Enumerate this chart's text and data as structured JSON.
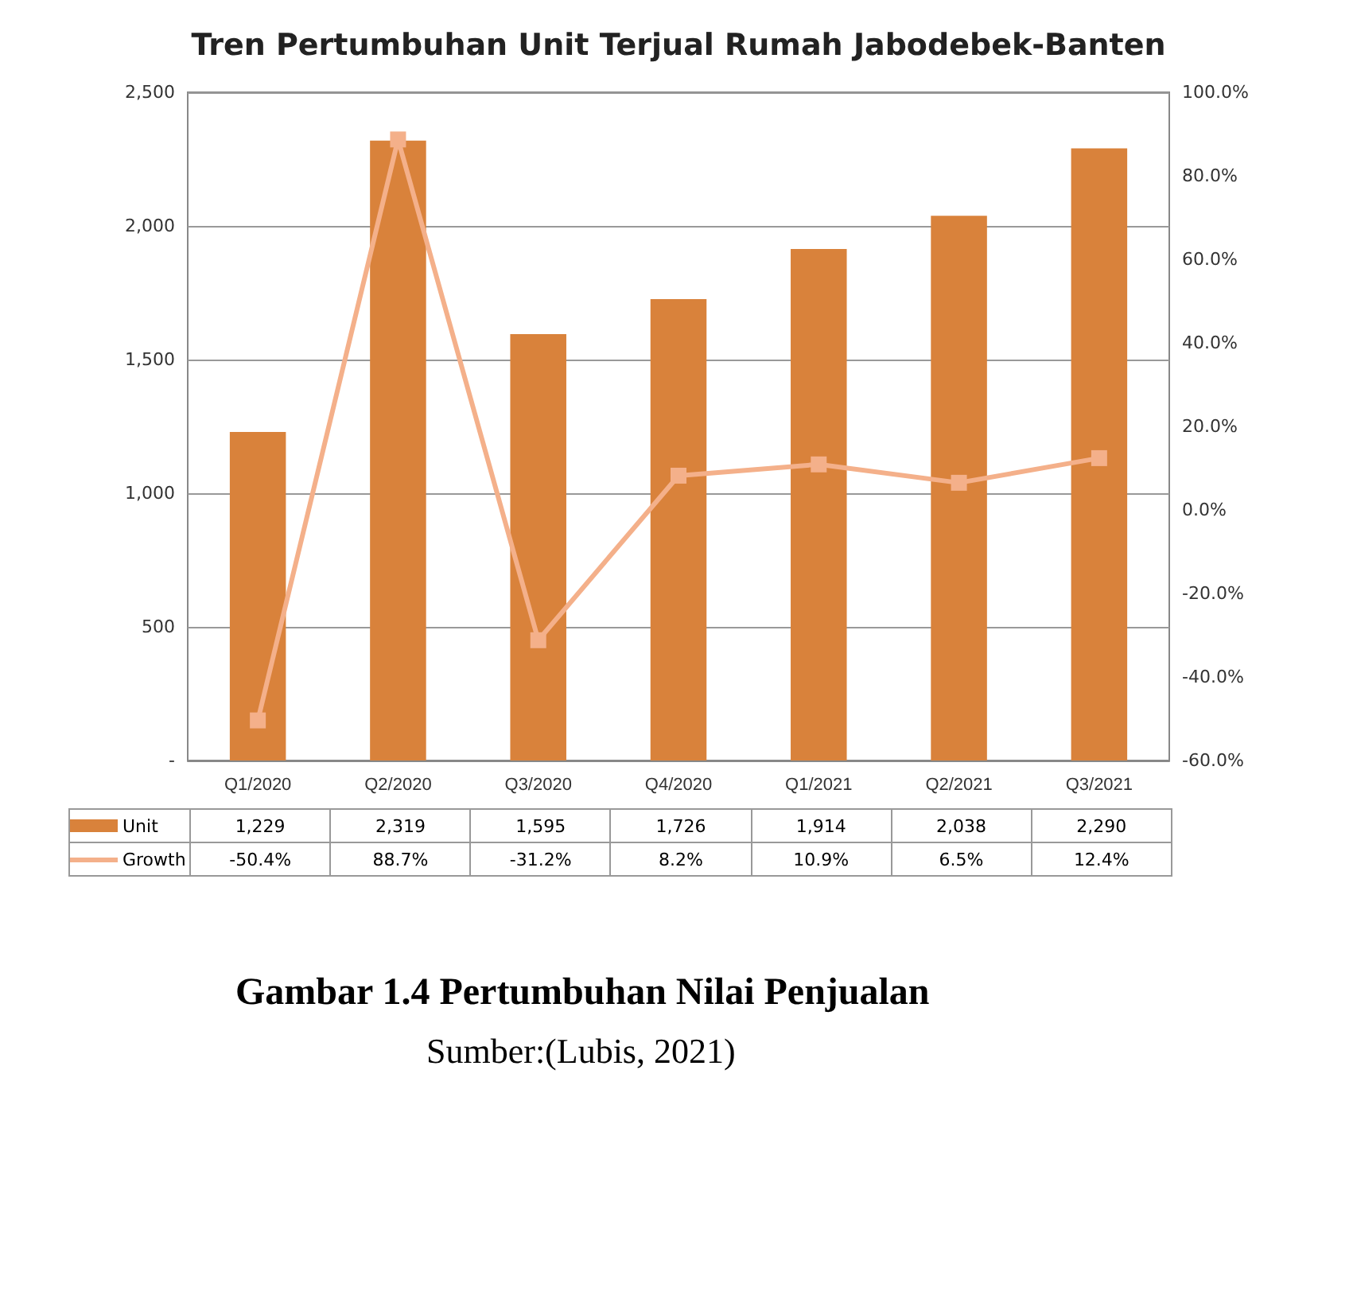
{
  "chart_data": {
    "type": "bar",
    "title": "Tren Pertumbuhan Unit Terjual Rumah Jabodebek-Banten",
    "categories": [
      "Q1/2020",
      "Q2/2020",
      "Q3/2020",
      "Q4/2020",
      "Q1/2021",
      "Q2/2021",
      "Q3/2021"
    ],
    "series": [
      {
        "name": "Unit",
        "color": "#d9823b",
        "values": [
          1229,
          2319,
          1595,
          1726,
          1914,
          2038,
          2290
        ],
        "value_labels": [
          "1,229",
          "2,319",
          "1,595",
          "1,726",
          "1,914",
          "2,038",
          "2,290"
        ]
      },
      {
        "name": "Growth",
        "type": "line",
        "axis": "y2",
        "color": "#f4b08a",
        "marker": "square",
        "values": [
          -50.4,
          88.7,
          -31.2,
          8.2,
          10.9,
          6.5,
          12.4
        ],
        "value_labels": [
          "-50.4%",
          "88.7%",
          "-31.2%",
          "8.2%",
          "10.9%",
          "6.5%",
          "12.4%"
        ]
      }
    ],
    "ylim": [
      0,
      2500
    ],
    "yticks": [
      {
        "value": 0,
        "label": "-"
      },
      {
        "value": 500,
        "label": "500"
      },
      {
        "value": 1000,
        "label": "1,000"
      },
      {
        "value": 1500,
        "label": "1,500"
      },
      {
        "value": 2000,
        "label": "2,000"
      },
      {
        "value": 2500,
        "label": "2,500"
      }
    ],
    "y2lim": [
      -60,
      100
    ],
    "y2ticks": [
      {
        "value": -60,
        "label": "-60.0%"
      },
      {
        "value": -40,
        "label": "-40.0%"
      },
      {
        "value": -20,
        "label": "-20.0%"
      },
      {
        "value": 0,
        "label": "0.0%"
      },
      {
        "value": 20,
        "label": "20.0%"
      },
      {
        "value": 40,
        "label": "40.0%"
      },
      {
        "value": 60,
        "label": "60.0%"
      },
      {
        "value": 80,
        "label": "80.0%"
      },
      {
        "value": 100,
        "label": "100.0%"
      }
    ],
    "grid": "y",
    "legend": "bottom left",
    "annotations": [
      "Gambar 1.4 Pertumbuhan Nilai Penjualan",
      "Sumber:(Lubis, 2021)"
    ]
  }
}
